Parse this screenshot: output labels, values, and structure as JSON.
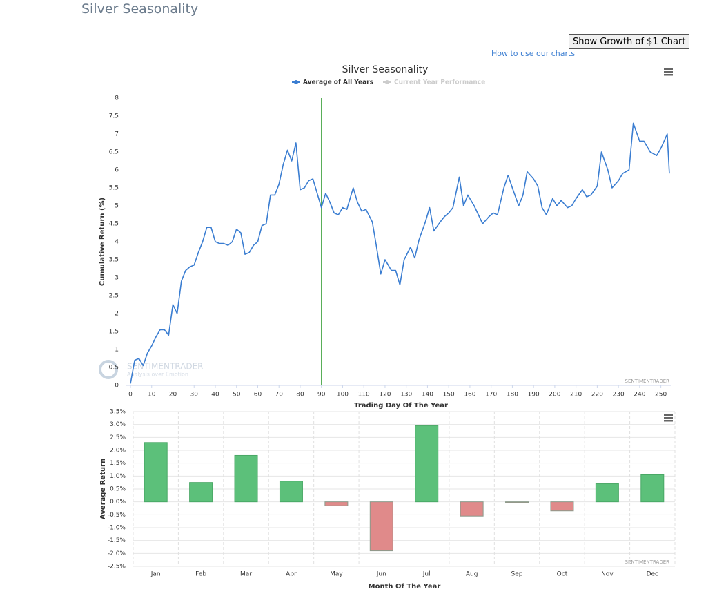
{
  "page_title": "Silver Seasonality",
  "button": "Show Growth of $1 Chart",
  "link": "How to use our charts",
  "watermark": {
    "name": "SENTIMENTRADER",
    "tagline": "Analysis over Emotion"
  },
  "chart_data": [
    {
      "type": "line",
      "title": "Silver Seasonality",
      "credit": "SENTIMENTRADER",
      "x_label": "Trading Day Of The Year",
      "y_label": "Cumulative Return (%)",
      "x": [
        0,
        2,
        4,
        6,
        8,
        10,
        12,
        14,
        16,
        18,
        20,
        22,
        24,
        26,
        28,
        30,
        32,
        34,
        36,
        38,
        40,
        42,
        44,
        46,
        48,
        50,
        52,
        54,
        56,
        58,
        60,
        62,
        64,
        66,
        68,
        70,
        72,
        74,
        76,
        78,
        80,
        82,
        84,
        86,
        88,
        90,
        92,
        94,
        96,
        98,
        100,
        102,
        105,
        107,
        109,
        111,
        114,
        116,
        118,
        120,
        123,
        125,
        127,
        129,
        132,
        134,
        136,
        139,
        141,
        143,
        146,
        148,
        150,
        152,
        155,
        157,
        159,
        162,
        164,
        166,
        169,
        171,
        173,
        176,
        178,
        180,
        183,
        185,
        187,
        190,
        192,
        194,
        196,
        199,
        201,
        203,
        206,
        208,
        210,
        213,
        215,
        217,
        220,
        222,
        225,
        227,
        230,
        232,
        235,
        237,
        240,
        242,
        245,
        248,
        250,
        253,
        254
      ],
      "series": [
        {
          "name": "Average of All Years",
          "color": "#3a7dd1",
          "values": [
            0.05,
            0.7,
            0.75,
            0.55,
            0.9,
            1.1,
            1.35,
            1.55,
            1.55,
            1.4,
            2.25,
            2.0,
            2.9,
            3.2,
            3.3,
            3.35,
            3.7,
            4.0,
            4.4,
            4.4,
            4.0,
            3.95,
            3.95,
            3.9,
            4.0,
            4.35,
            4.25,
            3.65,
            3.7,
            3.9,
            4.0,
            4.45,
            4.5,
            5.3,
            5.3,
            5.6,
            6.15,
            6.55,
            6.25,
            6.75,
            5.45,
            5.5,
            5.7,
            5.75,
            5.35,
            4.95,
            5.35,
            5.1,
            4.8,
            4.75,
            4.95,
            4.9,
            5.5,
            5.1,
            4.85,
            4.9,
            4.55,
            3.85,
            3.1,
            3.5,
            3.2,
            3.2,
            2.8,
            3.5,
            3.85,
            3.55,
            4.05,
            4.55,
            4.95,
            4.3,
            4.55,
            4.7,
            4.8,
            4.95,
            5.8,
            5.0,
            5.3,
            5.0,
            4.75,
            4.5,
            4.7,
            4.8,
            4.75,
            5.5,
            5.85,
            5.5,
            5.0,
            5.3,
            5.95,
            5.75,
            5.55,
            4.95,
            4.75,
            5.2,
            5.0,
            5.15,
            4.95,
            5.0,
            5.2,
            5.45,
            5.25,
            5.3,
            5.55,
            6.5,
            6.0,
            5.5,
            5.7,
            5.9,
            6.0,
            7.3,
            6.8,
            6.8,
            6.5,
            6.4,
            6.6,
            7.0,
            5.9
          ]
        }
      ],
      "hidden_series": [
        {
          "name": "Current Year Performance",
          "color": "#cccccc"
        }
      ],
      "plot_lines": [
        {
          "value": 90,
          "color": "#2e9a2e"
        }
      ],
      "xlim": [
        0,
        255
      ],
      "xticks": [
        0,
        10,
        20,
        30,
        40,
        50,
        60,
        70,
        80,
        90,
        100,
        110,
        120,
        130,
        140,
        150,
        160,
        170,
        180,
        190,
        200,
        210,
        220,
        230,
        240,
        250
      ],
      "ylim": [
        0,
        8
      ],
      "yticks": [
        0,
        0.5,
        1,
        1.5,
        2,
        2.5,
        3,
        3.5,
        4,
        4.5,
        5,
        5.5,
        6,
        6.5,
        7,
        7.5,
        8
      ]
    },
    {
      "type": "bar",
      "credit": "SENTIMENTRADER",
      "x_label": "Month Of The Year",
      "y_label": "Average Return",
      "categories": [
        "Jan",
        "Feb",
        "Mar",
        "Apr",
        "May",
        "Jun",
        "Jul",
        "Aug",
        "Sep",
        "Oct",
        "Nov",
        "Dec"
      ],
      "values": [
        2.3,
        0.75,
        1.8,
        0.8,
        -0.15,
        -1.9,
        2.95,
        -0.55,
        -0.03,
        -0.35,
        0.7,
        1.05
      ],
      "positive_color": "#5cc07a",
      "negative_color": "#e08a8a",
      "ylim": [
        -2.5,
        3.5
      ],
      "yticks": [
        {
          "value": -2.5,
          "label": "-2.5%"
        },
        {
          "value": -2,
          "label": "-2.0%"
        },
        {
          "value": -1.5,
          "label": "-1.5%"
        },
        {
          "value": -1,
          "label": "-1.0%"
        },
        {
          "value": -0.5,
          "label": "-0.5%"
        },
        {
          "value": 0,
          "label": "0.0%"
        },
        {
          "value": 0.5,
          "label": "0.5%"
        },
        {
          "value": 1,
          "label": "1.0%"
        },
        {
          "value": 1.5,
          "label": "1.5%"
        },
        {
          "value": 2,
          "label": "2.0%"
        },
        {
          "value": 2.5,
          "label": "2.5%"
        },
        {
          "value": 3,
          "label": "3.0%"
        },
        {
          "value": 3.5,
          "label": "3.5%"
        }
      ]
    }
  ]
}
